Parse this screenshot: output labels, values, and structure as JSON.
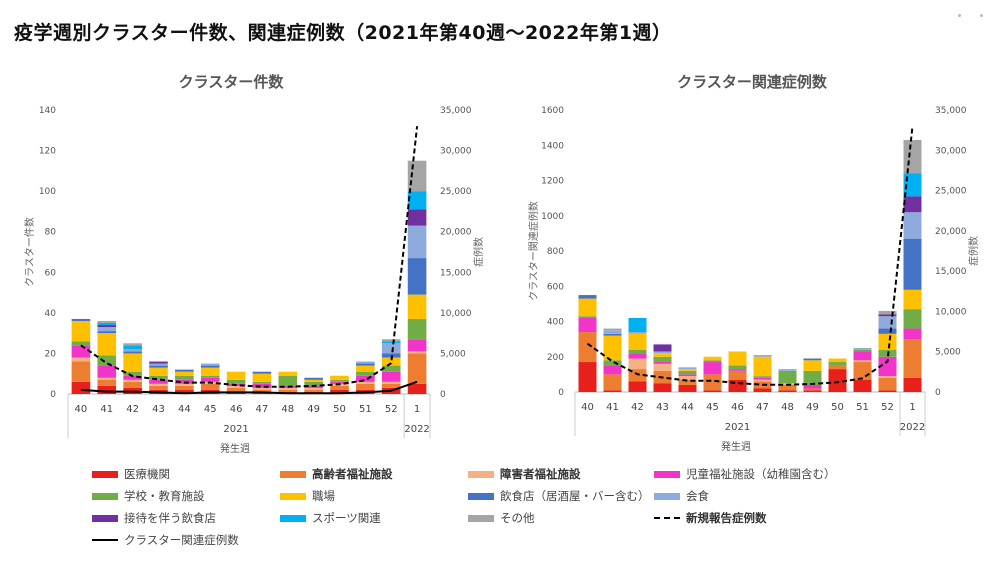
{
  "page_title": "疫学週別クラスター件数、関連症例数（2021年第40週～2022年第1週）",
  "legend": [
    {
      "key": "medical",
      "label": "医療機関",
      "color": "#E8201B",
      "kind": "rect",
      "bold": false
    },
    {
      "key": "elderly",
      "label": "高齢者福祉施設",
      "color": "#ED7D31",
      "kind": "rect",
      "bold": true
    },
    {
      "key": "disabled",
      "label": "障害者福祉施設",
      "color": "#F4B183",
      "kind": "rect",
      "bold": true
    },
    {
      "key": "child",
      "label": "児童福祉施設（幼稚園含む）",
      "color": "#F234C9",
      "kind": "rect",
      "bold": false
    },
    {
      "key": "school",
      "label": "学校・教育施設",
      "color": "#70AD47",
      "kind": "rect",
      "bold": false
    },
    {
      "key": "work",
      "label": "職場",
      "color": "#FFC000",
      "kind": "rect",
      "bold": false
    },
    {
      "key": "restaurant",
      "label": "飲食店（居酒屋・バー含む）",
      "color": "#4472C4",
      "kind": "rect",
      "bold": false
    },
    {
      "key": "meeting",
      "label": "会食",
      "color": "#8FAADC",
      "kind": "rect",
      "bold": false
    },
    {
      "key": "hosting",
      "label": "接待を伴う飲食店",
      "color": "#7030A0",
      "kind": "rect",
      "bold": false
    },
    {
      "key": "sports",
      "label": "スポーツ関連",
      "color": "#00B0F0",
      "kind": "rect",
      "bold": false
    },
    {
      "key": "other",
      "label": "その他",
      "color": "#A5A5A5",
      "kind": "rect",
      "bold": false
    },
    {
      "key": "newcases",
      "label": "新規報告症例数",
      "color": "#000000",
      "kind": "dash",
      "bold": true
    },
    {
      "key": "clustercases",
      "label": "クラスター関連症例数",
      "color": "#000000",
      "kind": "solid",
      "bold": false
    }
  ],
  "chart_data": [
    {
      "type": "bar",
      "stacked": true,
      "title": "クラスター件数",
      "ylabel": "クラスター件数",
      "y2label": "症例数",
      "xlabel": "発生週",
      "categories": [
        "40",
        "41",
        "42",
        "43",
        "44",
        "45",
        "46",
        "47",
        "48",
        "49",
        "50",
        "51",
        "52",
        "1"
      ],
      "year_groups": [
        {
          "label": "2021",
          "span": 13
        },
        {
          "label": "2022",
          "span": 1
        }
      ],
      "ylim": [
        0,
        140
      ],
      "yticks": [
        0,
        20,
        40,
        60,
        80,
        100,
        120,
        140
      ],
      "y2lim": [
        0,
        35000
      ],
      "y2ticks": [
        "0",
        "5,000",
        "10,000",
        "15,000",
        "20,000",
        "25,000",
        "30,000",
        "35,000"
      ],
      "series": [
        {
          "key": "medical",
          "values": [
            6,
            4,
            3,
            2,
            2,
            2,
            1,
            1,
            1,
            1,
            2,
            2,
            3,
            5
          ]
        },
        {
          "key": "elderly",
          "values": [
            10,
            3,
            3,
            2,
            2,
            3,
            2,
            1,
            1,
            1,
            2,
            3,
            2,
            15
          ]
        },
        {
          "key": "disabled",
          "values": [
            2,
            1,
            1,
            1,
            1,
            1,
            1,
            1,
            1,
            1,
            1,
            1,
            1,
            1
          ]
        },
        {
          "key": "child",
          "values": [
            6,
            6,
            2,
            2,
            2,
            2,
            1,
            2,
            1,
            1,
            1,
            3,
            5,
            6
          ]
        },
        {
          "key": "school",
          "values": [
            2,
            5,
            2,
            2,
            2,
            1,
            2,
            1,
            5,
            2,
            1,
            2,
            3,
            10
          ]
        },
        {
          "key": "work",
          "values": [
            10,
            11,
            9,
            4,
            2,
            4,
            4,
            4,
            2,
            1,
            2,
            3,
            4,
            12
          ]
        },
        {
          "key": "restaurant",
          "values": [
            1,
            1,
            1,
            1,
            1,
            1,
            0,
            1,
            0,
            1,
            0,
            1,
            2,
            18
          ]
        },
        {
          "key": "meeting",
          "values": [
            0,
            2,
            1,
            1,
            0,
            1,
            0,
            0,
            0,
            0,
            0,
            1,
            5,
            16
          ]
        },
        {
          "key": "hosting",
          "values": [
            0,
            1,
            0,
            1,
            0,
            0,
            0,
            0,
            0,
            0,
            0,
            0,
            0,
            8
          ]
        },
        {
          "key": "sports",
          "values": [
            0,
            1,
            2,
            0,
            0,
            0,
            0,
            0,
            0,
            0,
            0,
            0,
            1,
            9
          ]
        },
        {
          "key": "other",
          "values": [
            0,
            1,
            1,
            0,
            0,
            0,
            0,
            0,
            0,
            0,
            0,
            0,
            1,
            15
          ]
        }
      ],
      "lines": [
        {
          "key": "newcases",
          "axis": "y2",
          "values": [
            6000,
            3800,
            2200,
            1800,
            1400,
            1400,
            1100,
            900,
            900,
            1000,
            1200,
            1700,
            3800,
            33000
          ]
        },
        {
          "key": "clustercases",
          "axis": "y2",
          "values": [
            500,
            300,
            300,
            200,
            100,
            200,
            200,
            200,
            100,
            100,
            100,
            200,
            400,
            1500
          ]
        }
      ]
    },
    {
      "type": "bar",
      "stacked": true,
      "title": "クラスター関連症例数",
      "ylabel": "クラスター関連症例数",
      "y2label": "症例数",
      "xlabel": "発生週",
      "categories": [
        "40",
        "41",
        "42",
        "43",
        "44",
        "45",
        "46",
        "47",
        "48",
        "49",
        "50",
        "51",
        "52",
        "1"
      ],
      "year_groups": [
        {
          "label": "2021",
          "span": 13
        },
        {
          "label": "2022",
          "span": 1
        }
      ],
      "ylim": [
        0,
        1600
      ],
      "yticks": [
        0,
        200,
        400,
        600,
        800,
        1000,
        1200,
        1400,
        1600
      ],
      "y2lim": [
        0,
        35000
      ],
      "y2ticks": [
        "0",
        "5,000",
        "10,000",
        "15,000",
        "20,000",
        "25,000",
        "30,000",
        "35,000"
      ],
      "series": [
        {
          "key": "medical",
          "values": [
            170,
            10,
            60,
            50,
            40,
            10,
            70,
            20,
            10,
            10,
            130,
            70,
            10,
            80
          ]
        },
        {
          "key": "elderly",
          "values": [
            170,
            90,
            70,
            70,
            30,
            90,
            50,
            40,
            30,
            10,
            20,
            100,
            70,
            220
          ]
        },
        {
          "key": "disabled",
          "values": [
            0,
            0,
            60,
            40,
            20,
            0,
            0,
            10,
            10,
            0,
            0,
            10,
            10,
            0
          ]
        },
        {
          "key": "child",
          "values": [
            80,
            50,
            30,
            10,
            10,
            70,
            10,
            10,
            0,
            20,
            0,
            50,
            110,
            60
          ]
        },
        {
          "key": "school",
          "values": [
            10,
            30,
            20,
            30,
            20,
            10,
            20,
            10,
            70,
            80,
            20,
            10,
            40,
            110
          ]
        },
        {
          "key": "work",
          "values": [
            100,
            140,
            90,
            20,
            10,
            20,
            80,
            110,
            0,
            60,
            20,
            0,
            90,
            110
          ]
        },
        {
          "key": "restaurant",
          "values": [
            20,
            10,
            0,
            0,
            0,
            0,
            0,
            0,
            0,
            10,
            0,
            0,
            30,
            290
          ]
        },
        {
          "key": "meeting",
          "values": [
            0,
            20,
            10,
            10,
            10,
            0,
            0,
            10,
            10,
            0,
            0,
            10,
            70,
            150
          ]
        },
        {
          "key": "hosting",
          "values": [
            0,
            0,
            0,
            40,
            0,
            0,
            0,
            0,
            0,
            0,
            0,
            0,
            10,
            90
          ]
        },
        {
          "key": "sports",
          "values": [
            0,
            0,
            80,
            0,
            0,
            0,
            0,
            0,
            0,
            0,
            0,
            0,
            0,
            130
          ]
        },
        {
          "key": "other",
          "values": [
            0,
            10,
            0,
            0,
            0,
            0,
            0,
            0,
            0,
            0,
            0,
            0,
            20,
            190
          ]
        }
      ],
      "lines": [
        {
          "key": "newcases",
          "axis": "y2",
          "values": [
            6000,
            3800,
            2200,
            1800,
            1400,
            1400,
            1100,
            900,
            900,
            1000,
            1200,
            1700,
            3800,
            33000
          ]
        }
      ]
    }
  ]
}
